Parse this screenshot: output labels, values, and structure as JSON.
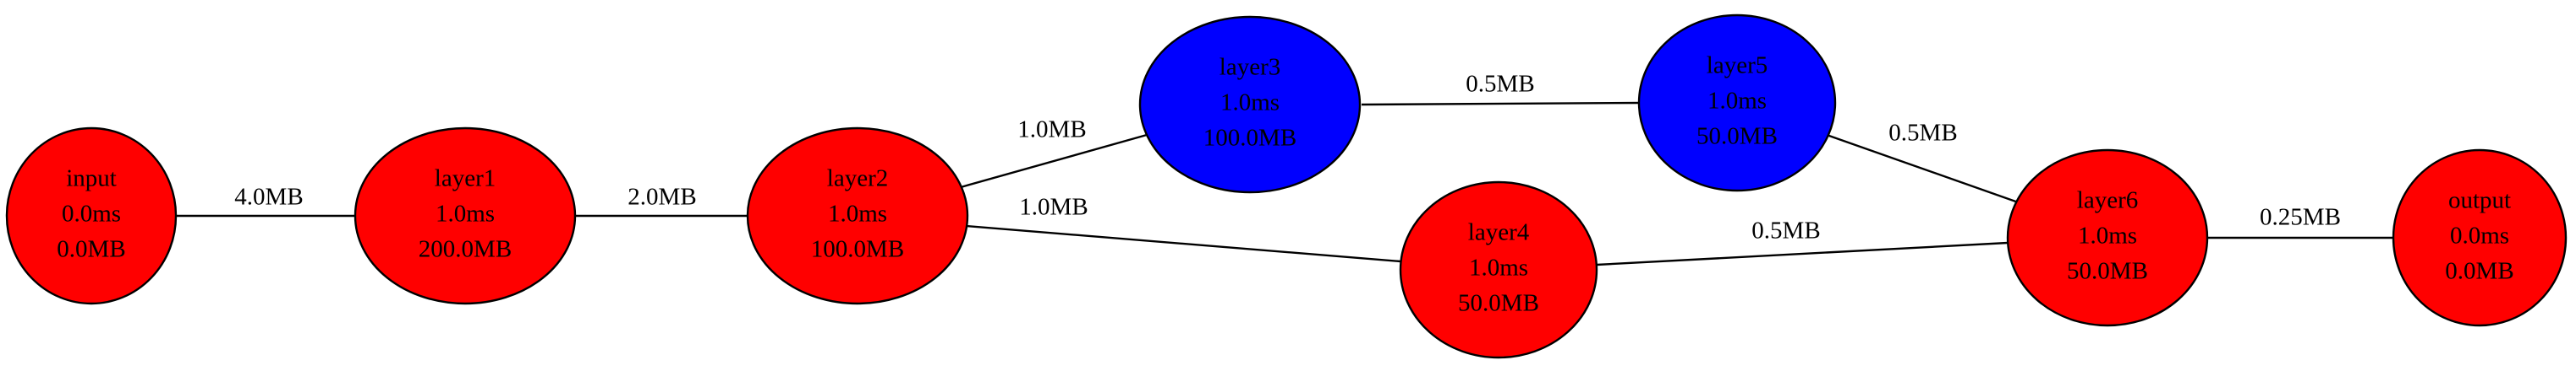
{
  "graph": {
    "colors": {
      "red": "#ff0000",
      "blue": "#0000ff",
      "edge": "#000000"
    },
    "nodes": [
      {
        "id": "input",
        "name": "input",
        "time": "0.0ms",
        "mem": "0.0MB",
        "fill": "red"
      },
      {
        "id": "layer1",
        "name": "layer1",
        "time": "1.0ms",
        "mem": "200.0MB",
        "fill": "red"
      },
      {
        "id": "layer2",
        "name": "layer2",
        "time": "1.0ms",
        "mem": "100.0MB",
        "fill": "red"
      },
      {
        "id": "layer3",
        "name": "layer3",
        "time": "1.0ms",
        "mem": "100.0MB",
        "fill": "blue"
      },
      {
        "id": "layer4",
        "name": "layer4",
        "time": "1.0ms",
        "mem": "50.0MB",
        "fill": "red"
      },
      {
        "id": "layer5",
        "name": "layer5",
        "time": "1.0ms",
        "mem": "50.0MB",
        "fill": "blue"
      },
      {
        "id": "layer6",
        "name": "layer6",
        "time": "1.0ms",
        "mem": "50.0MB",
        "fill": "red"
      },
      {
        "id": "output",
        "name": "output",
        "time": "0.0ms",
        "mem": "0.0MB",
        "fill": "red"
      }
    ],
    "edges": [
      {
        "id": "input-layer1",
        "from": "input",
        "to": "layer1",
        "label": "4.0MB"
      },
      {
        "id": "layer1-layer2",
        "from": "layer1",
        "to": "layer2",
        "label": "2.0MB"
      },
      {
        "id": "layer2-layer3",
        "from": "layer2",
        "to": "layer3",
        "label": "1.0MB"
      },
      {
        "id": "layer2-layer4",
        "from": "layer2",
        "to": "layer4",
        "label": "1.0MB"
      },
      {
        "id": "layer3-layer5",
        "from": "layer3",
        "to": "layer5",
        "label": "0.5MB"
      },
      {
        "id": "layer4-layer6",
        "from": "layer4",
        "to": "layer6",
        "label": "0.5MB"
      },
      {
        "id": "layer5-layer6",
        "from": "layer5",
        "to": "layer6",
        "label": "0.5MB"
      },
      {
        "id": "layer6-output",
        "from": "layer6",
        "to": "output",
        "label": "0.25MB"
      }
    ]
  }
}
